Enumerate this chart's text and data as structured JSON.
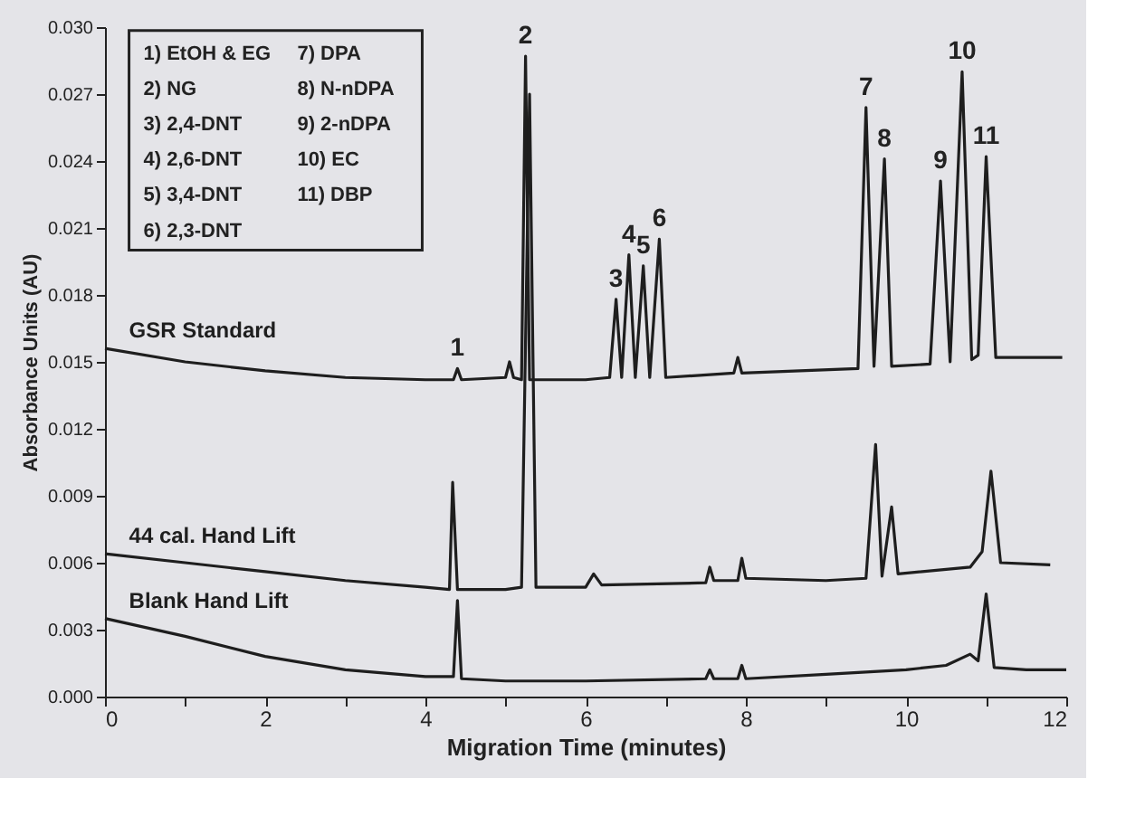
{
  "chart_data": {
    "type": "line",
    "xlabel": "Migration Time (minutes)",
    "ylabel": "Absorbance Units (AU)",
    "xlim": [
      0,
      12
    ],
    "xticks": [
      0,
      {
        "value": 1,
        "label": null
      },
      2,
      {
        "value": 3,
        "label": null
      },
      4,
      {
        "value": 5,
        "label": null
      },
      6,
      {
        "value": 7,
        "label": null
      },
      8,
      {
        "value": 9,
        "label": null
      },
      10,
      {
        "value": 11,
        "label": null
      },
      12
    ],
    "ylim": [
      0,
      0.03
    ],
    "yticks": [
      {
        "value": 0,
        "label": "0.000"
      },
      0.003,
      0.006,
      0.009,
      0.012,
      0.015,
      0.018,
      0.021,
      0.024,
      0.027,
      {
        "value": 0.03,
        "label": "0.030"
      }
    ],
    "grid": false,
    "line_style": "solid",
    "marker": "none",
    "series": [
      {
        "name": "GSR Standard",
        "color": "#1e1e1e",
        "x": [
          0,
          1,
          2,
          3,
          4,
          4.35,
          4.4,
          4.45,
          5.0,
          5.05,
          5.1,
          5.2,
          5.25,
          5.3,
          6.0,
          6.3,
          6.38,
          6.45,
          6.54,
          6.62,
          6.72,
          6.8,
          6.92,
          7.0,
          7.85,
          7.9,
          7.95,
          9.4,
          9.5,
          9.6,
          9.73,
          9.82,
          10.3,
          10.43,
          10.55,
          10.7,
          10.82,
          10.9,
          11.0,
          11.12,
          11.95
        ],
        "values": [
          0.0156,
          0.015,
          0.0146,
          0.0143,
          0.0142,
          0.0142,
          0.0147,
          0.0142,
          0.0143,
          0.015,
          0.0143,
          0.0142,
          0.0287,
          0.0142,
          0.0142,
          0.0143,
          0.0178,
          0.0143,
          0.0198,
          0.0143,
          0.0193,
          0.0143,
          0.0205,
          0.0143,
          0.0145,
          0.0152,
          0.0145,
          0.0147,
          0.0264,
          0.0148,
          0.0241,
          0.0148,
          0.0149,
          0.0231,
          0.015,
          0.028,
          0.0151,
          0.0153,
          0.0242,
          0.0152,
          0.0152
        ]
      },
      {
        "name": "44 cal. Hand Lift",
        "color": "#1e1e1e",
        "x": [
          0,
          1,
          2,
          3,
          4,
          4.3,
          4.34,
          4.4,
          5.0,
          5.2,
          5.3,
          5.38,
          6.0,
          6.1,
          6.2,
          7.5,
          7.55,
          7.6,
          7.9,
          7.95,
          8.0,
          9.0,
          9.5,
          9.62,
          9.7,
          9.82,
          9.9,
          10.8,
          10.95,
          11.06,
          11.18,
          11.8
        ],
        "values": [
          0.0064,
          0.006,
          0.0056,
          0.0052,
          0.0049,
          0.0048,
          0.0096,
          0.0048,
          0.0048,
          0.0049,
          0.027,
          0.0049,
          0.0049,
          0.0055,
          0.005,
          0.0051,
          0.0058,
          0.0052,
          0.0052,
          0.0062,
          0.0053,
          0.0052,
          0.0053,
          0.0113,
          0.0054,
          0.0085,
          0.0055,
          0.0058,
          0.0065,
          0.0101,
          0.006,
          0.0059
        ]
      },
      {
        "name": "Blank Hand Lift",
        "color": "#1e1e1e",
        "x": [
          0,
          1,
          2,
          3,
          4,
          4.35,
          4.4,
          4.45,
          5,
          6,
          7.5,
          7.55,
          7.6,
          7.9,
          7.95,
          8.0,
          9.0,
          10.0,
          10.5,
          10.8,
          10.9,
          11.0,
          11.1,
          11.5,
          12.0
        ],
        "values": [
          0.0035,
          0.0027,
          0.0018,
          0.0012,
          0.0009,
          0.0009,
          0.0043,
          0.0008,
          0.0007,
          0.0007,
          0.0008,
          0.0012,
          0.0008,
          0.0008,
          0.0014,
          0.0008,
          0.001,
          0.0012,
          0.0014,
          0.0019,
          0.0016,
          0.0046,
          0.0013,
          0.0012,
          0.0012
        ]
      }
    ],
    "annotations": [
      "1) EtOH & EG",
      "2) NG",
      "3) 2,4-DNT",
      "4) 2,6-DNT",
      "5) 3,4-DNT",
      "6) 2,3-DNT",
      "7) DPA",
      "8) N-nDPA",
      "9) 2-nDPA",
      "10) EC",
      "11) DBP",
      {
        "text": "1",
        "x": 4.4,
        "y": 0.0147
      },
      {
        "text": "2",
        "x": 5.25,
        "y": 0.0287
      },
      {
        "text": "3",
        "x": 6.38,
        "y": 0.0178
      },
      {
        "text": "4",
        "x": 6.54,
        "y": 0.0198
      },
      {
        "text": "5",
        "x": 6.72,
        "y": 0.0193
      },
      {
        "text": "6",
        "x": 6.92,
        "y": 0.0205
      },
      {
        "text": "7",
        "x": 9.5,
        "y": 0.0264
      },
      {
        "text": "8",
        "x": 9.73,
        "y": 0.0241
      },
      {
        "text": "9",
        "x": 10.43,
        "y": 0.0231
      },
      {
        "text": "10",
        "x": 10.7,
        "y": 0.028
      },
      {
        "text": "11",
        "x": 11.0,
        "y": 0.0242
      }
    ]
  }
}
